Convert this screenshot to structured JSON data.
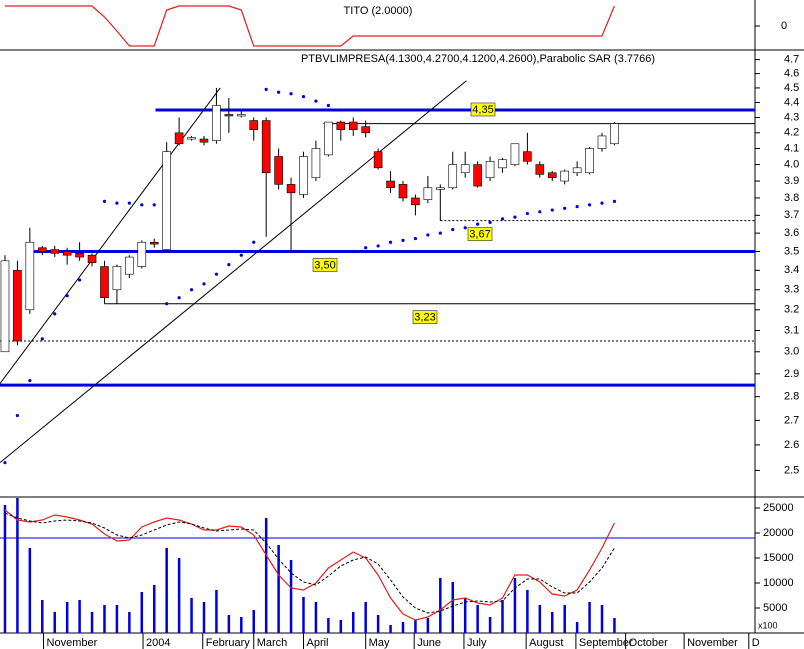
{
  "chart_data": [
    {
      "type": "line",
      "title": "TITO (2.0000)",
      "x": [
        0,
        1,
        2,
        3,
        4,
        5,
        6,
        7,
        8,
        9,
        10,
        11,
        12,
        13,
        14,
        15,
        16,
        17,
        18,
        19,
        20,
        21,
        22,
        23,
        24,
        25,
        26,
        27,
        28,
        29,
        30,
        31,
        32,
        33,
        34,
        35,
        36,
        37,
        38,
        39,
        40,
        41,
        42,
        43,
        44,
        45,
        46,
        47,
        48,
        49
      ],
      "xlim": [
        -0.4,
        60.3
      ],
      "ylim": [
        -1.2,
        1.2
      ],
      "yticks": [
        0
      ],
      "series": [
        {
          "color": "#e02020",
          "values": [
            1,
            1,
            1,
            1,
            1,
            1,
            1,
            1,
            0.45,
            -0.25,
            -1,
            -1,
            -1,
            0.8,
            1,
            1,
            1,
            1,
            1,
            0.8,
            -1,
            -1,
            -1,
            -1,
            -1,
            -1,
            -1,
            -1,
            -0.5,
            -0.5,
            -0.5,
            -0.5,
            -0.5,
            -0.5,
            -0.5,
            -0.5,
            -0.5,
            -0.5,
            -0.5,
            -0.5,
            -0.5,
            -0.5,
            -0.5,
            -0.5,
            -0.5,
            -0.5,
            -0.5,
            -0.5,
            -0.5,
            1
          ]
        }
      ]
    },
    {
      "type": "candlestick",
      "title": "PTBVLIMPRESA(4.1300,4.2700,4.1200,4.2600),Parabolic SAR (3.7766)",
      "x": [
        0,
        1,
        2,
        3,
        4,
        5,
        6,
        7,
        8,
        9,
        10,
        11,
        12,
        13,
        14,
        15,
        16,
        17,
        18,
        19,
        20,
        21,
        22,
        23,
        24,
        25,
        26,
        27,
        28,
        29,
        30,
        31,
        32,
        33,
        34,
        35,
        36,
        37,
        38,
        39,
        40,
        41,
        42,
        43,
        44,
        45,
        46,
        47,
        48,
        49
      ],
      "xlim": [
        -0.4,
        60.3
      ],
      "ylim": [
        2.4,
        4.77
      ],
      "log_scale": true,
      "yticks": [
        4.7,
        4.6,
        4.5,
        4.4,
        4.3,
        4.2,
        4.1,
        {
          "value": 4,
          "label": "4.0"
        },
        3.9,
        3.8,
        3.7,
        3.6,
        3.5,
        3.4,
        3.3,
        3.2,
        3.1,
        {
          "value": 3,
          "label": "3.0"
        },
        2.9,
        2.8,
        2.7,
        2.6,
        2.5
      ],
      "open": [
        3.0,
        3.4,
        3.2,
        3.52,
        3.51,
        3.5,
        3.49,
        3.48,
        3.42,
        3.3,
        3.38,
        3.42,
        3.55,
        3.51,
        4.2,
        4.16,
        4.16,
        4.15,
        4.32,
        4.31,
        4.28,
        4.28,
        4.05,
        3.88,
        3.82,
        3.92,
        4.06,
        4.27,
        4.27,
        4.24,
        4.08,
        3.9,
        3.88,
        3.8,
        3.79,
        3.85,
        3.86,
        3.95,
        4.0,
        3.92,
        3.98,
        4.0,
        4.08,
        4.0,
        3.95,
        3.9,
        3.95,
        3.95,
        4.1,
        4.13
      ],
      "high": [
        3.48,
        3.45,
        3.63,
        3.53,
        3.53,
        3.52,
        3.55,
        3.49,
        3.45,
        3.43,
        3.48,
        3.56,
        3.57,
        4.14,
        4.3,
        4.18,
        4.18,
        4.5,
        4.43,
        4.35,
        4.3,
        4.3,
        4.1,
        3.92,
        4.08,
        4.15,
        4.27,
        4.28,
        4.3,
        4.28,
        4.1,
        3.96,
        3.9,
        3.82,
        3.93,
        3.88,
        4.08,
        4.08,
        4.02,
        4.05,
        4.04,
        4.13,
        4.2,
        4.02,
        3.96,
        3.97,
        4.02,
        4.11,
        4.2,
        4.27
      ],
      "low": [
        3.0,
        3.03,
        3.18,
        3.48,
        3.47,
        3.43,
        3.45,
        3.42,
        3.23,
        3.23,
        3.36,
        3.41,
        3.52,
        3.5,
        4.12,
        4.15,
        4.12,
        4.13,
        4.2,
        4.3,
        4.15,
        3.58,
        3.85,
        3.5,
        3.8,
        3.9,
        4.05,
        4.15,
        4.18,
        4.17,
        3.97,
        3.83,
        3.78,
        3.7,
        3.77,
        3.67,
        3.85,
        3.92,
        3.86,
        3.9,
        3.95,
        3.99,
        4.0,
        3.92,
        3.9,
        3.88,
        3.93,
        3.94,
        4.08,
        4.12
      ],
      "close": [
        3.45,
        3.05,
        3.55,
        3.5,
        3.49,
        3.48,
        3.47,
        3.44,
        3.26,
        3.42,
        3.47,
        3.55,
        3.54,
        4.08,
        4.13,
        4.17,
        4.14,
        4.38,
        4.31,
        4.32,
        4.22,
        3.95,
        3.88,
        3.83,
        4.05,
        4.1,
        4.27,
        4.22,
        4.22,
        4.2,
        3.98,
        3.86,
        3.8,
        3.76,
        3.86,
        3.86,
        4.0,
        4.0,
        3.87,
        4.02,
        4.03,
        4.13,
        4.02,
        3.94,
        3.92,
        3.96,
        3.98,
        4.1,
        4.18,
        4.26
      ],
      "up_color": "#ffffff",
      "down_color": "#ff0000",
      "sar": {
        "color": "#0000dd",
        "values": [
          2.53,
          2.72,
          2.87,
          3.06,
          3.18,
          3.27,
          3.35,
          null,
          3.78,
          3.77,
          3.77,
          3.76,
          3.76,
          3.23,
          3.26,
          3.3,
          3.33,
          3.38,
          3.43,
          3.48,
          3.55,
          4.49,
          4.47,
          4.46,
          4.44,
          4.41,
          4.38,
          4.35,
          null,
          3.52,
          3.53,
          3.55,
          3.56,
          3.57,
          3.59,
          3.6,
          3.62,
          3.63,
          3.65,
          3.66,
          3.68,
          3.69,
          3.71,
          3.72,
          3.73,
          3.74,
          3.75,
          3.76,
          3.77,
          3.78
        ]
      },
      "levels": [
        {
          "value": 4.35,
          "label": "4,35",
          "from": 12.1,
          "color": "#0000dd",
          "style": "thick"
        },
        {
          "value": 4.26,
          "from": 25.6,
          "color": "#000000",
          "style": "thin"
        },
        {
          "value": 3.67,
          "label": "3,67",
          "from": 35.0,
          "color": "#000000",
          "style": "dotted"
        },
        {
          "value": 3.5,
          "label": "3,50",
          "from": 2.0,
          "color": "#0000dd",
          "style": "thick"
        },
        {
          "value": 3.23,
          "label": "3,23",
          "from": 8.0,
          "color": "#000000",
          "style": "thin"
        },
        {
          "value": 3.05,
          "from": -0.4,
          "color": "#000000",
          "style": "dotted"
        },
        {
          "value": 2.85,
          "from": -0.4,
          "color": "#0000dd",
          "style": "thick"
        }
      ],
      "trendlines": [
        {
          "x": [
            -0.4,
            17.3
          ],
          "y": [
            2.857,
            4.5
          ]
        },
        {
          "x": [
            -0.4,
            37.1
          ],
          "y": [
            2.53,
            4.55
          ]
        }
      ]
    },
    {
      "type": "bar",
      "unit_label": "x100",
      "x": [
        0,
        1,
        2,
        3,
        4,
        5,
        6,
        7,
        8,
        9,
        10,
        11,
        12,
        13,
        14,
        15,
        16,
        17,
        18,
        19,
        20,
        21,
        22,
        23,
        24,
        25,
        26,
        27,
        28,
        29,
        30,
        31,
        32,
        33,
        34,
        35,
        36,
        37,
        38,
        39,
        40,
        41,
        42,
        43,
        44,
        45,
        46,
        47,
        48,
        49
      ],
      "xlim": [
        -0.4,
        60.3
      ],
      "ylim": [
        0,
        27200
      ],
      "yticks": [
        25000,
        20000,
        15000,
        10000,
        5000
      ],
      "xticks": [
        {
          "value": 3.1,
          "label": "November"
        },
        {
          "value": 11.1,
          "label": "2004"
        },
        {
          "value": 15.9,
          "label": "February"
        },
        {
          "value": 20,
          "label": "March"
        },
        {
          "value": 24,
          "label": "April"
        },
        {
          "value": 29,
          "label": "May"
        },
        {
          "value": 32.9,
          "label": "June"
        },
        {
          "value": 36.9,
          "label": "July"
        },
        {
          "value": 41.9,
          "label": "August"
        },
        {
          "value": 45.9,
          "label": "September"
        },
        {
          "value": 49.9,
          "label": "October"
        },
        {
          "value": 54.6,
          "label": "November"
        },
        {
          "value": 59.8,
          "label": "D"
        }
      ],
      "color": "#0000dd",
      "values": [
        25600,
        27000,
        17000,
        6600,
        4200,
        6200,
        6600,
        4200,
        5600,
        5600,
        4200,
        8200,
        9600,
        17000,
        15000,
        7000,
        6200,
        8600,
        3600,
        3200,
        4600,
        23000,
        17600,
        14600,
        7200,
        6200,
        3000,
        2600,
        4200,
        6200,
        3600,
        1600,
        2200,
        2600,
        3000,
        11000,
        10200,
        7000,
        5600,
        3200,
        6600,
        11000,
        8600,
        5600,
        4200,
        5600,
        2200,
        6200,
        5600,
        3000
      ],
      "level": {
        "value": 19000,
        "color": "#0000dd"
      },
      "series": [
        {
          "color": "#e02020",
          "dash": false,
          "values": [
            24600,
            22600,
            22200,
            22600,
            23600,
            23200,
            22600,
            21800,
            19800,
            18400,
            18600,
            21200,
            22200,
            23000,
            22600,
            21800,
            20600,
            20600,
            21400,
            21200,
            19600,
            15600,
            11600,
            9000,
            8600,
            10000,
            13000,
            14600,
            16200,
            15000,
            11600,
            7000,
            3800,
            2600,
            3200,
            4600,
            6600,
            7000,
            6000,
            5600,
            7000,
            11600,
            11600,
            10200,
            7800,
            7400,
            8600,
            12600,
            17000,
            22000
          ]
        },
        {
          "color": "#000000",
          "dash": true,
          "values": [
            24000,
            23000,
            22400,
            22000,
            22400,
            22600,
            22400,
            22000,
            21000,
            19600,
            19000,
            19600,
            20600,
            21600,
            22200,
            21800,
            21000,
            20400,
            20600,
            20800,
            20600,
            18000,
            14800,
            12000,
            10200,
            9600,
            11400,
            13400,
            14600,
            15200,
            13800,
            10600,
            7200,
            5000,
            4000,
            4400,
            5400,
            6200,
            6400,
            6200,
            6400,
            9000,
            10800,
            10800,
            9200,
            8000,
            8000,
            10200,
            13000,
            17000
          ]
        }
      ]
    }
  ]
}
